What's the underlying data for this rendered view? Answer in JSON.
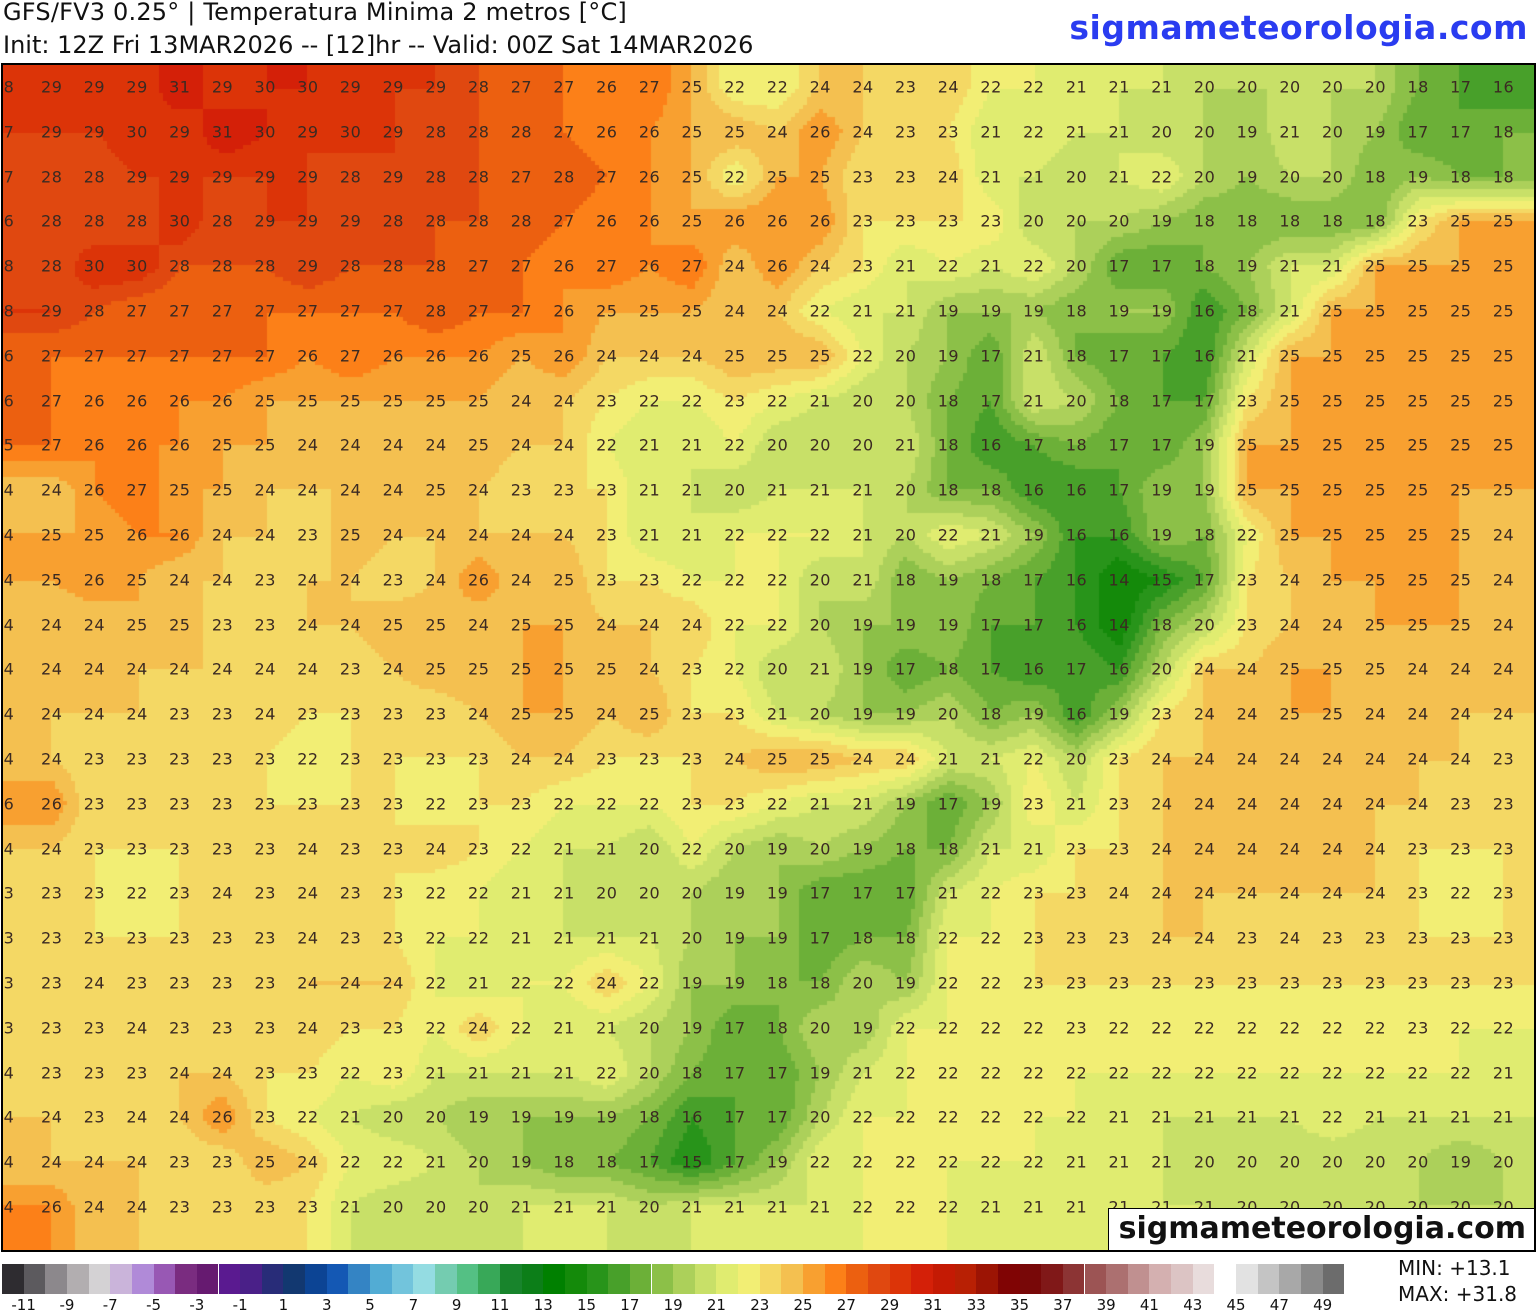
{
  "header": {
    "title": "GFS/FV3 0.25° | Temperatura Minima 2 metros [°C]",
    "subtitle": "Init: 12Z Fri 13MAR2026 -- [12]hr -- Valid: 00Z Sat 14MAR2026",
    "brand": "sigmameteorologia.com"
  },
  "watermark": "sigmameteorologia.com",
  "stats": {
    "min": "MIN: +13.1",
    "max": "MAX: +31.8"
  },
  "colorbar": {
    "unit": "°C",
    "labels": [
      "-11",
      "-9",
      "-7",
      "-5",
      "-3",
      "-1",
      "1",
      "3",
      "5",
      "7",
      "9",
      "11",
      "13",
      "15",
      "17",
      "19",
      "21",
      "23",
      "25",
      "27",
      "29",
      "31",
      "33",
      "35",
      "37",
      "39",
      "41",
      "43",
      "45",
      "47",
      "49"
    ],
    "colors": [
      "#2e2c30",
      "#5c5a5e",
      "#8c888c",
      "#b2aeb0",
      "#d4d2d4",
      "#cab4da",
      "#b08ad8",
      "#9858b4",
      "#7a2c80",
      "#661a70",
      "#5a1a90",
      "#4a2088",
      "#282c78",
      "#123870",
      "#0c4494",
      "#1458b4",
      "#3484c4",
      "#52acd4",
      "#72c4dc",
      "#94dce2",
      "#74ccb0",
      "#54c084",
      "#38a858",
      "#18842c",
      "#0c7e18",
      "#008000",
      "#148a0a",
      "#28941a",
      "#48a02a",
      "#6cb038",
      "#8cc048",
      "#acd05a",
      "#c8e068",
      "#e0ec70",
      "#f2ee74",
      "#f4d864",
      "#f4c050",
      "#f8a030",
      "#fc8018",
      "#ec6010",
      "#e04810",
      "#dc3408",
      "#d42008",
      "#c41a04",
      "#b82004",
      "#9c1404",
      "#800404",
      "#780808",
      "#801818",
      "#8c3434",
      "#9c5454",
      "#ac7070",
      "#c09090",
      "#d4b0b0",
      "#dcc4c4",
      "#e8dcdc",
      "#ffffff",
      "#e2e2e2",
      "#c4c4c4",
      "#a8a8a8",
      "#8a8a8a",
      "#6c6c6c"
    ]
  },
  "grid_values": [
    [
      8,
      29,
      29,
      29,
      31,
      29,
      30,
      30,
      29,
      29,
      29,
      28,
      27,
      27,
      26,
      27,
      25,
      22,
      22,
      24,
      24,
      23,
      24,
      22,
      22,
      21,
      21,
      21,
      20,
      20,
      20,
      20,
      20,
      18,
      17,
      16
    ],
    [
      7,
      29,
      29,
      30,
      29,
      31,
      30,
      29,
      30,
      29,
      28,
      28,
      28,
      27,
      26,
      26,
      25,
      25,
      24,
      26,
      24,
      23,
      23,
      21,
      22,
      21,
      21,
      20,
      20,
      19,
      21,
      20,
      19,
      17,
      17,
      18
    ],
    [
      7,
      28,
      28,
      29,
      29,
      29,
      29,
      29,
      28,
      29,
      28,
      28,
      27,
      28,
      27,
      26,
      25,
      22,
      25,
      25,
      23,
      23,
      24,
      21,
      21,
      20,
      21,
      22,
      20,
      19,
      20,
      20,
      18,
      19,
      18,
      18
    ],
    [
      6,
      28,
      28,
      28,
      30,
      28,
      29,
      29,
      29,
      28,
      28,
      28,
      28,
      27,
      26,
      26,
      25,
      26,
      26,
      26,
      23,
      23,
      23,
      23,
      20,
      20,
      20,
      19,
      18,
      18,
      18,
      18,
      18,
      23,
      25,
      25
    ],
    [
      8,
      28,
      30,
      30,
      28,
      28,
      28,
      29,
      28,
      28,
      28,
      27,
      27,
      26,
      27,
      26,
      27,
      24,
      26,
      24,
      23,
      21,
      22,
      21,
      22,
      20,
      17,
      17,
      18,
      19,
      21,
      21,
      25,
      25,
      25,
      25
    ],
    [
      8,
      29,
      28,
      27,
      27,
      27,
      27,
      27,
      27,
      27,
      28,
      27,
      27,
      26,
      25,
      25,
      25,
      24,
      24,
      22,
      21,
      21,
      19,
      19,
      19,
      18,
      19,
      19,
      16,
      18,
      21,
      25,
      25,
      25,
      25,
      25
    ],
    [
      6,
      27,
      27,
      27,
      27,
      27,
      27,
      26,
      27,
      26,
      26,
      26,
      25,
      26,
      24,
      24,
      24,
      25,
      25,
      25,
      22,
      20,
      19,
      17,
      21,
      18,
      17,
      17,
      16,
      21,
      25,
      25,
      25,
      25,
      25,
      25
    ],
    [
      6,
      27,
      26,
      26,
      26,
      26,
      25,
      25,
      25,
      25,
      25,
      25,
      24,
      24,
      23,
      22,
      22,
      23,
      22,
      21,
      20,
      20,
      18,
      17,
      21,
      20,
      18,
      17,
      17,
      23,
      25,
      25,
      25,
      25,
      25,
      25
    ],
    [
      5,
      27,
      26,
      26,
      26,
      25,
      25,
      24,
      24,
      24,
      24,
      25,
      24,
      24,
      22,
      21,
      21,
      22,
      20,
      20,
      20,
      21,
      18,
      16,
      17,
      18,
      17,
      17,
      19,
      25,
      25,
      25,
      25,
      25,
      25,
      25
    ],
    [
      4,
      24,
      26,
      27,
      25,
      25,
      24,
      24,
      24,
      24,
      25,
      24,
      23,
      23,
      23,
      21,
      21,
      20,
      21,
      21,
      21,
      20,
      18,
      18,
      16,
      16,
      17,
      19,
      19,
      25,
      25,
      25,
      25,
      25,
      25,
      25
    ],
    [
      4,
      25,
      25,
      26,
      26,
      24,
      24,
      23,
      25,
      24,
      24,
      24,
      24,
      24,
      23,
      21,
      21,
      22,
      22,
      22,
      21,
      20,
      22,
      21,
      19,
      16,
      16,
      19,
      18,
      22,
      25,
      25,
      25,
      25,
      25,
      24
    ],
    [
      4,
      25,
      26,
      25,
      24,
      24,
      23,
      24,
      24,
      23,
      24,
      26,
      24,
      25,
      23,
      23,
      22,
      22,
      22,
      20,
      21,
      18,
      19,
      18,
      17,
      16,
      14,
      15,
      17,
      23,
      24,
      25,
      25,
      25,
      25,
      24
    ],
    [
      4,
      24,
      24,
      25,
      25,
      23,
      23,
      24,
      24,
      25,
      25,
      24,
      25,
      25,
      24,
      24,
      24,
      22,
      22,
      20,
      19,
      19,
      19,
      17,
      17,
      16,
      14,
      18,
      20,
      23,
      24,
      24,
      25,
      25,
      25,
      24
    ],
    [
      4,
      24,
      24,
      24,
      24,
      24,
      24,
      24,
      23,
      24,
      25,
      25,
      25,
      25,
      25,
      24,
      23,
      22,
      20,
      21,
      19,
      17,
      18,
      17,
      16,
      17,
      16,
      20,
      24,
      24,
      25,
      25,
      25,
      24,
      24,
      24
    ],
    [
      4,
      24,
      24,
      24,
      23,
      23,
      24,
      23,
      23,
      23,
      23,
      24,
      25,
      25,
      24,
      25,
      23,
      23,
      21,
      20,
      19,
      19,
      20,
      18,
      19,
      16,
      19,
      23,
      24,
      24,
      25,
      25,
      24,
      24,
      24,
      24
    ],
    [
      4,
      24,
      23,
      23,
      23,
      23,
      23,
      22,
      23,
      23,
      23,
      23,
      24,
      24,
      23,
      23,
      23,
      24,
      25,
      25,
      24,
      24,
      21,
      21,
      22,
      20,
      23,
      24,
      24,
      24,
      24,
      24,
      24,
      24,
      24,
      23
    ],
    [
      6,
      26,
      23,
      23,
      23,
      23,
      23,
      23,
      23,
      23,
      22,
      23,
      23,
      22,
      22,
      22,
      23,
      23,
      22,
      21,
      21,
      19,
      17,
      19,
      23,
      21,
      23,
      24,
      24,
      24,
      24,
      24,
      24,
      24,
      23,
      23
    ],
    [
      4,
      24,
      23,
      23,
      23,
      23,
      23,
      24,
      23,
      23,
      24,
      23,
      22,
      21,
      21,
      20,
      22,
      20,
      19,
      20,
      19,
      18,
      18,
      21,
      21,
      23,
      23,
      24,
      24,
      24,
      24,
      24,
      24,
      23,
      23,
      23
    ],
    [
      3,
      23,
      23,
      22,
      23,
      24,
      23,
      24,
      23,
      23,
      22,
      22,
      21,
      21,
      20,
      20,
      20,
      19,
      19,
      17,
      17,
      17,
      21,
      22,
      23,
      23,
      24,
      24,
      24,
      24,
      24,
      24,
      24,
      23,
      22,
      23
    ],
    [
      3,
      23,
      23,
      23,
      23,
      23,
      23,
      24,
      23,
      23,
      22,
      22,
      21,
      21,
      21,
      21,
      20,
      19,
      19,
      17,
      18,
      18,
      22,
      22,
      23,
      23,
      23,
      24,
      24,
      23,
      24,
      23,
      23,
      23,
      23,
      23
    ],
    [
      3,
      23,
      24,
      23,
      23,
      23,
      23,
      24,
      24,
      24,
      22,
      21,
      22,
      22,
      24,
      22,
      19,
      19,
      18,
      18,
      20,
      19,
      22,
      22,
      23,
      23,
      23,
      23,
      23,
      23,
      23,
      23,
      23,
      23,
      23,
      23
    ],
    [
      3,
      23,
      23,
      24,
      23,
      23,
      23,
      24,
      23,
      23,
      22,
      24,
      22,
      21,
      21,
      20,
      19,
      17,
      18,
      20,
      19,
      22,
      22,
      22,
      22,
      23,
      22,
      22,
      22,
      22,
      22,
      22,
      22,
      23,
      22,
      22
    ],
    [
      4,
      23,
      23,
      23,
      24,
      24,
      23,
      23,
      22,
      23,
      21,
      21,
      21,
      21,
      22,
      20,
      18,
      17,
      17,
      19,
      21,
      22,
      22,
      22,
      22,
      22,
      22,
      22,
      22,
      22,
      22,
      22,
      22,
      22,
      22,
      21
    ],
    [
      4,
      24,
      23,
      24,
      24,
      26,
      23,
      22,
      21,
      20,
      20,
      19,
      19,
      19,
      19,
      18,
      16,
      17,
      17,
      20,
      22,
      22,
      22,
      22,
      22,
      22,
      21,
      21,
      21,
      21,
      21,
      22,
      21,
      21,
      21,
      21
    ],
    [
      4,
      24,
      24,
      24,
      23,
      23,
      25,
      24,
      22,
      22,
      21,
      20,
      19,
      18,
      18,
      17,
      15,
      17,
      19,
      22,
      22,
      22,
      22,
      22,
      22,
      21,
      21,
      21,
      20,
      20,
      20,
      20,
      20,
      20,
      19,
      20
    ],
    [
      4,
      26,
      24,
      24,
      23,
      23,
      23,
      23,
      21,
      20,
      20,
      20,
      21,
      21,
      21,
      20,
      21,
      21,
      21,
      21,
      22,
      22,
      22,
      21,
      21,
      21,
      21,
      21,
      21,
      20,
      20,
      20,
      20,
      20,
      20,
      20
    ]
  ]
}
